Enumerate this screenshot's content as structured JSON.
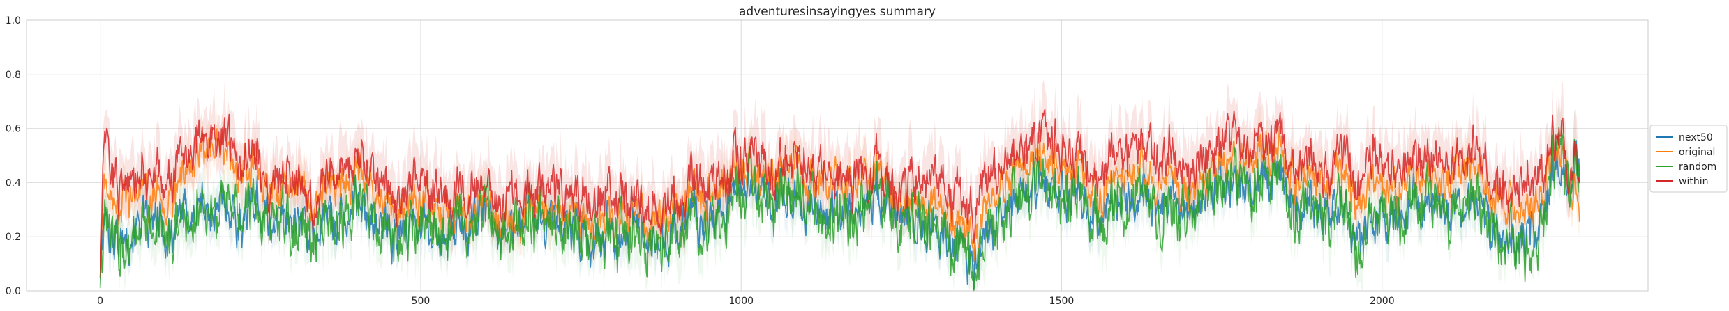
{
  "chart_data": {
    "type": "line",
    "title": "adventuresinsayingyes summary",
    "xlabel": "",
    "ylabel": "",
    "xlim": [
      -115,
      2415
    ],
    "ylim": [
      0.0,
      1.0
    ],
    "x_ticks": [
      "0",
      "500",
      "1000",
      "1500",
      "2000"
    ],
    "x_tick_values": [
      0,
      500,
      1000,
      1500,
      2000
    ],
    "y_ticks": [
      "0.0",
      "0.2",
      "0.4",
      "0.6",
      "0.8",
      "1.0"
    ],
    "y_tick_values": [
      0.0,
      0.2,
      0.4,
      0.6,
      0.8,
      1.0
    ],
    "grid": true,
    "legend_position": "right-outside",
    "n_points": 2309,
    "series": [
      {
        "name": "next50",
        "color": "#1f77b4",
        "anchors_x": [
          0,
          5,
          30,
          100,
          180,
          260,
          350,
          450,
          550,
          650,
          750,
          850,
          950,
          1030,
          1100,
          1180,
          1240,
          1300,
          1370,
          1420,
          1480,
          1550,
          1620,
          1700,
          1760,
          1830,
          1900,
          1980,
          2050,
          2120,
          2200,
          2240,
          2280,
          2309
        ],
        "anchors_y": [
          0.02,
          0.27,
          0.22,
          0.24,
          0.32,
          0.26,
          0.28,
          0.27,
          0.26,
          0.25,
          0.24,
          0.22,
          0.25,
          0.38,
          0.31,
          0.33,
          0.3,
          0.22,
          0.17,
          0.32,
          0.36,
          0.3,
          0.33,
          0.31,
          0.43,
          0.36,
          0.3,
          0.22,
          0.3,
          0.31,
          0.24,
          0.18,
          0.45,
          0.4
        ]
      },
      {
        "name": "original",
        "color": "#ff7f0e",
        "anchors_x": [
          0,
          5,
          30,
          100,
          180,
          260,
          350,
          450,
          550,
          650,
          750,
          850,
          950,
          1030,
          1100,
          1180,
          1240,
          1300,
          1370,
          1420,
          1480,
          1550,
          1620,
          1700,
          1760,
          1830,
          1900,
          1980,
          2050,
          2120,
          2200,
          2240,
          2280,
          2309
        ],
        "anchors_y": [
          0.05,
          0.4,
          0.35,
          0.34,
          0.55,
          0.36,
          0.4,
          0.37,
          0.32,
          0.28,
          0.3,
          0.28,
          0.34,
          0.46,
          0.42,
          0.43,
          0.35,
          0.28,
          0.26,
          0.42,
          0.45,
          0.38,
          0.41,
          0.38,
          0.5,
          0.45,
          0.41,
          0.35,
          0.4,
          0.42,
          0.38,
          0.3,
          0.52,
          0.24
        ]
      },
      {
        "name": "random",
        "color": "#2ca02c",
        "anchors_x": [
          0,
          5,
          30,
          100,
          180,
          260,
          350,
          450,
          550,
          650,
          750,
          850,
          950,
          1030,
          1100,
          1180,
          1240,
          1300,
          1370,
          1420,
          1480,
          1550,
          1620,
          1700,
          1760,
          1830,
          1900,
          1980,
          2050,
          2120,
          2200,
          2240,
          2280,
          2309
        ],
        "anchors_y": [
          0.01,
          0.26,
          0.2,
          0.22,
          0.33,
          0.25,
          0.27,
          0.26,
          0.25,
          0.24,
          0.23,
          0.21,
          0.24,
          0.38,
          0.3,
          0.32,
          0.29,
          0.21,
          0.16,
          0.31,
          0.35,
          0.29,
          0.32,
          0.3,
          0.44,
          0.35,
          0.29,
          0.21,
          0.29,
          0.3,
          0.23,
          0.1,
          0.5,
          0.38
        ]
      },
      {
        "name": "within",
        "color": "#d62728",
        "anchors_x": [
          0,
          5,
          30,
          100,
          180,
          260,
          350,
          450,
          550,
          650,
          750,
          850,
          950,
          1030,
          1100,
          1180,
          1240,
          1300,
          1370,
          1420,
          1480,
          1550,
          1620,
          1700,
          1760,
          1830,
          1900,
          1980,
          2050,
          2120,
          2200,
          2240,
          2280,
          2309
        ],
        "anchors_y": [
          0.05,
          0.55,
          0.42,
          0.42,
          0.6,
          0.4,
          0.43,
          0.41,
          0.38,
          0.35,
          0.38,
          0.34,
          0.38,
          0.5,
          0.44,
          0.45,
          0.4,
          0.38,
          0.37,
          0.48,
          0.52,
          0.44,
          0.52,
          0.45,
          0.58,
          0.5,
          0.47,
          0.44,
          0.45,
          0.46,
          0.44,
          0.38,
          0.55,
          0.39
        ]
      }
    ]
  }
}
